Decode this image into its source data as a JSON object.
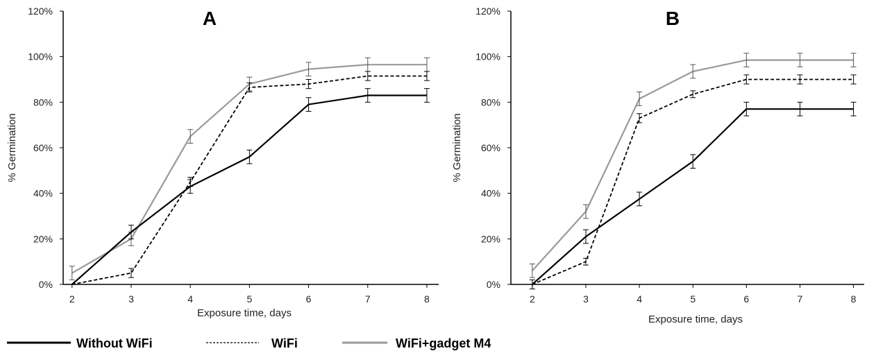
{
  "legend": {
    "items": [
      {
        "label": "Without WiFi"
      },
      {
        "label": "WiFi"
      },
      {
        "label": "WiFi+gadget M4"
      }
    ]
  },
  "chart_data": [
    {
      "type": "line",
      "title": "A",
      "xlabel": "Exposure time, days",
      "ylabel": "% Germination",
      "x": [
        2,
        3,
        4,
        5,
        6,
        7,
        8
      ],
      "xlim": [
        1.85,
        8.2
      ],
      "ylim": [
        0,
        1.2
      ],
      "yticks": [
        0,
        0.2,
        0.4,
        0.6,
        0.8,
        1.0,
        1.2
      ],
      "ytick_labels": [
        "0%",
        "20%",
        "40%",
        "60%",
        "80%",
        "100%",
        "120%"
      ],
      "xtick_labels": [
        "2",
        "3",
        "4",
        "5",
        "6",
        "7",
        "8"
      ],
      "grid": false,
      "series": [
        {
          "name": "Without WiFi",
          "color": "#000000",
          "dash": "solid",
          "values": [
            0.0,
            0.23,
            0.43,
            0.56,
            0.79,
            0.83,
            0.83
          ],
          "errors": [
            0.0,
            0.03,
            0.03,
            0.03,
            0.03,
            0.03,
            0.03
          ]
        },
        {
          "name": "WiFi",
          "color": "#000000",
          "dash": "dashed",
          "values": [
            0.0,
            0.05,
            0.45,
            0.865,
            0.88,
            0.915,
            0.915
          ],
          "errors": [
            0.0,
            0.02,
            0.02,
            0.02,
            0.02,
            0.02,
            0.02
          ]
        },
        {
          "name": "WiFi+gadget M4",
          "color": "#999999",
          "dash": "solid",
          "values": [
            0.05,
            0.2,
            0.65,
            0.88,
            0.945,
            0.965,
            0.965
          ],
          "errors": [
            0.03,
            0.03,
            0.03,
            0.03,
            0.03,
            0.03,
            0.03
          ]
        }
      ]
    },
    {
      "type": "line",
      "title": "B",
      "xlabel": "Exposure time, days",
      "ylabel": "% Germination",
      "x": [
        2,
        3,
        4,
        5,
        6,
        7,
        8
      ],
      "xlim": [
        1.6,
        8.2
      ],
      "ylim": [
        0,
        1.2
      ],
      "yticks": [
        0,
        0.2,
        0.4,
        0.6,
        0.8,
        1.0,
        1.2
      ],
      "ytick_labels": [
        "0%",
        "20%",
        "40%",
        "60%",
        "80%",
        "100%",
        "120%"
      ],
      "xtick_labels": [
        "2",
        "3",
        "4",
        "5",
        "6",
        "7",
        "8"
      ],
      "grid": false,
      "series": [
        {
          "name": "Without WiFi",
          "color": "#000000",
          "dash": "solid",
          "values": [
            0.0,
            0.21,
            0.375,
            0.54,
            0.77,
            0.77,
            0.77
          ],
          "errors": [
            0.0,
            0.03,
            0.03,
            0.03,
            0.03,
            0.03,
            0.03
          ]
        },
        {
          "name": "WiFi",
          "color": "#000000",
          "dash": "dashed",
          "values": [
            0.0,
            0.1,
            0.73,
            0.835,
            0.9,
            0.9,
            0.9
          ],
          "errors": [
            0.02,
            0.015,
            0.02,
            0.015,
            0.02,
            0.02,
            0.02
          ]
        },
        {
          "name": "WiFi+gadget M4",
          "color": "#999999",
          "dash": "solid",
          "values": [
            0.06,
            0.32,
            0.815,
            0.935,
            0.985,
            0.985,
            0.985
          ],
          "errors": [
            0.03,
            0.03,
            0.03,
            0.03,
            0.03,
            0.03,
            0.03
          ]
        }
      ]
    }
  ]
}
